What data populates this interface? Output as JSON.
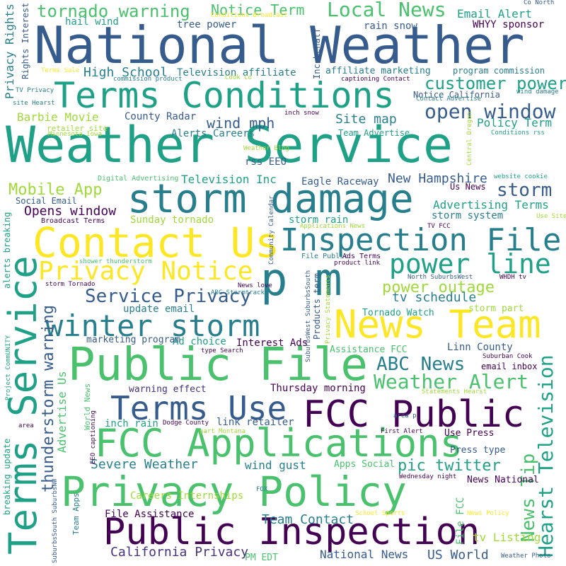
{
  "palette": {
    "background": "#ffffff",
    "dark_purple": "#440154",
    "indigo": "#46327e",
    "blue": "#365c8d",
    "teal_blue": "#277f8e",
    "teal": "#1fa187",
    "green": "#4ac16d",
    "lime": "#a0da39",
    "yellow": "#fde725"
  },
  "words": [
    {
      "text": "Weather Service"
    },
    {
      "text": "National Weather"
    },
    {
      "text": "Privacy Policy"
    },
    {
      "text": "Public File"
    },
    {
      "text": "Public Inspection"
    },
    {
      "text": "storm damage"
    },
    {
      "text": "Terms Conditions"
    },
    {
      "text": "FCC Applications"
    },
    {
      "text": "Contact Us"
    },
    {
      "text": "Terms Service"
    },
    {
      "text": "FCC Public"
    },
    {
      "text": "Inspection File"
    },
    {
      "text": "p m"
    },
    {
      "text": "News Team"
    },
    {
      "text": "winter storm"
    },
    {
      "text": "Terms Use"
    },
    {
      "text": "Privacy Notice"
    },
    {
      "text": "power line"
    },
    {
      "text": "Hearst Television"
    },
    {
      "text": "customer power"
    },
    {
      "text": "Local News"
    },
    {
      "text": "open window"
    },
    {
      "text": "tornado warning"
    },
    {
      "text": "Weather Alert"
    },
    {
      "text": "Service Privacy"
    },
    {
      "text": "ABC News"
    },
    {
      "text": "Notice Term"
    },
    {
      "text": "power outage"
    },
    {
      "text": "News Tip"
    },
    {
      "text": "thunderstorm warning"
    },
    {
      "text": "storm"
    },
    {
      "text": "pic twitter"
    },
    {
      "text": "Mobile App"
    },
    {
      "text": "Severe Weather"
    },
    {
      "text": "Barbie Movie"
    },
    {
      "text": "High School"
    },
    {
      "text": "wind mph"
    },
    {
      "text": "Privacy Rights"
    },
    {
      "text": "Opens window"
    },
    {
      "text": "Advertising Terms"
    },
    {
      "text": "Site map"
    },
    {
      "text": "Email Alert"
    },
    {
      "text": "tv schedule"
    },
    {
      "text": "New Hampshire"
    },
    {
      "text": "Team Contact"
    },
    {
      "text": "California Privacy"
    },
    {
      "text": "National News"
    },
    {
      "text": "US World"
    },
    {
      "text": "Policy Term"
    },
    {
      "text": "Television Inc"
    },
    {
      "text": "Eagle Raceway"
    },
    {
      "text": "Thursday morning"
    },
    {
      "text": "Linn County"
    },
    {
      "text": "Advertise Us"
    },
    {
      "text": "tv Listing"
    },
    {
      "text": "Careers Internships"
    },
    {
      "text": "File Assistance"
    },
    {
      "text": "wind gust"
    },
    {
      "text": "inch rain"
    },
    {
      "text": "link retailer"
    },
    {
      "text": "email inbox"
    },
    {
      "text": "Television affiliate"
    },
    {
      "text": "tree power"
    },
    {
      "text": "hail wind"
    },
    {
      "text": "rain snow"
    },
    {
      "text": "WHYY sponsor"
    },
    {
      "text": "County Radar"
    },
    {
      "text": "storm system"
    },
    {
      "text": "Us News"
    },
    {
      "text": "Sunday tornado"
    },
    {
      "text": "storm rain"
    },
    {
      "text": "Alerts Careers"
    },
    {
      "text": "rss EEO"
    },
    {
      "text": "Social Email"
    },
    {
      "text": "update email"
    },
    {
      "text": "Ad choice"
    },
    {
      "text": "Interest Ads"
    },
    {
      "text": "marketing program"
    },
    {
      "text": "warning effect"
    },
    {
      "text": "Assistance FCC"
    },
    {
      "text": "Tornado Watch"
    },
    {
      "text": "storm part"
    },
    {
      "text": "Use Press"
    },
    {
      "text": "Press type"
    },
    {
      "text": "Apps Social"
    },
    {
      "text": "News National"
    },
    {
      "text": "PM EDT"
    },
    {
      "text": "affiliate marketing"
    },
    {
      "text": "program commission"
    },
    {
      "text": "Notice California"
    },
    {
      "text": "Team Advertise"
    },
    {
      "text": "Rights Interest"
    },
    {
      "text": "Inc behalf"
    },
    {
      "text": "Products term"
    },
    {
      "text": "File FCC"
    },
    {
      "text": "World News"
    },
    {
      "text": "Team Apps"
    },
    {
      "text": "breaking update"
    },
    {
      "text": "alerts breaking"
    },
    {
      "text": "retailer site"
    },
    {
      "text": "Broadcast Terms"
    },
    {
      "text": "Digital Advertising"
    },
    {
      "text": "Applications News"
    },
    {
      "text": "Community Calendar"
    },
    {
      "text": "File Public"
    },
    {
      "text": "Ads Terms"
    },
    {
      "text": "product link"
    },
    {
      "text": "North SuburbsWest"
    },
    {
      "text": "WHDH tv"
    },
    {
      "text": "ABC Stormtrack"
    },
    {
      "text": "shower thunderstorm"
    },
    {
      "text": "storm Tornado"
    },
    {
      "text": "News love"
    },
    {
      "text": "type Search"
    },
    {
      "text": "Suburban Cook"
    },
    {
      "text": "Statements Hearst"
    },
    {
      "text": "Dodge County"
    },
    {
      "text": "EEO captioning"
    },
    {
      "text": "part Montana"
    },
    {
      "text": "First Alert"
    },
    {
      "text": "area p"
    },
    {
      "text": "Wednesday night"
    },
    {
      "text": "FOX"
    },
    {
      "text": "School Sports"
    },
    {
      "text": "News Policy"
    },
    {
      "text": "Weather Photo"
    },
    {
      "text": "Co North"
    },
    {
      "text": "Conditions Broadcast"
    },
    {
      "text": "Cook Co"
    },
    {
      "text": "captioning Contact"
    },
    {
      "text": "commission product"
    },
    {
      "text": "Terms Sale"
    },
    {
      "text": "TV Privacy"
    },
    {
      "text": "site Hearst"
    },
    {
      "text": "Minnesota Iowa"
    },
    {
      "text": "inch snow"
    },
    {
      "text": "Contact Advertise"
    },
    {
      "text": "wind damage"
    },
    {
      "text": "Central Oregon"
    },
    {
      "text": "Conditions rss"
    },
    {
      "text": "Weather Blog"
    },
    {
      "text": "website cookie"
    },
    {
      "text": "Use Site"
    },
    {
      "text": "TV FCC"
    },
    {
      "text": "Project CommUNITY"
    },
    {
      "text": "area"
    },
    {
      "text": "SuburbsSouth SuburbsNW"
    },
    {
      "text": "SuburbsWest SuburbsSouth"
    },
    {
      "text": "Privacy Statements"
    }
  ]
}
